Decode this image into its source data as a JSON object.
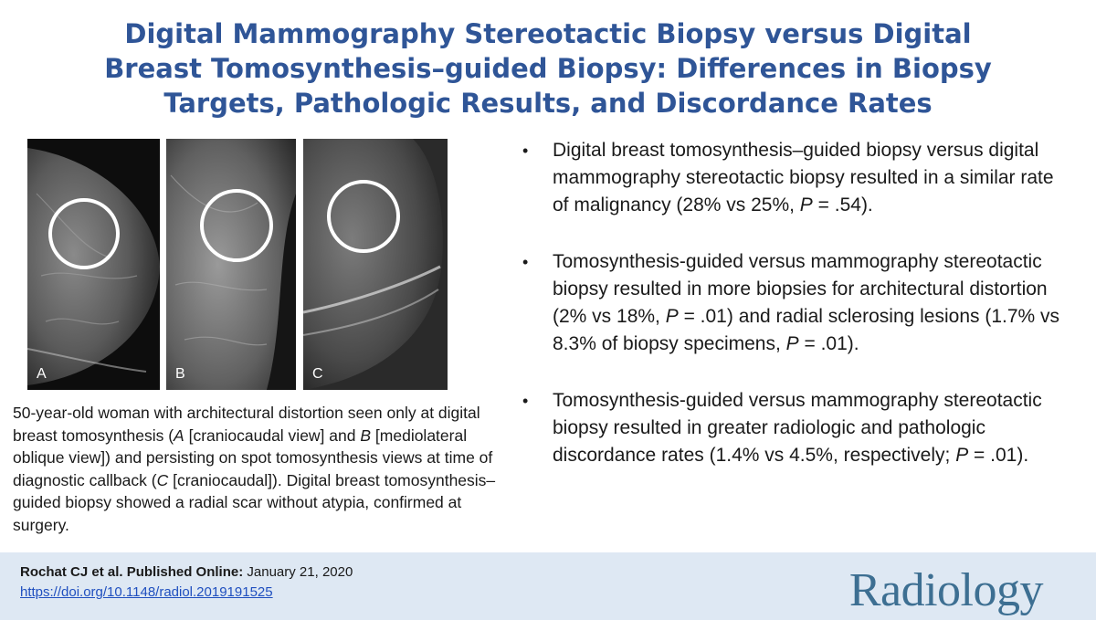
{
  "title": {
    "line1": "Digital Mammography Stereotactic Biopsy versus Digital",
    "line2": "Breast Tomosynthesis–guided Biopsy: Differences in Biopsy",
    "line3": "Targets, Pathologic Results, and Discordance Rates"
  },
  "figure": {
    "panels": [
      {
        "label": "A"
      },
      {
        "label": "B"
      },
      {
        "label": "C"
      }
    ],
    "caption": {
      "p1": "50-year-old woman with architectural distortion seen only at digital breast tomosynthesis (",
      "a": "A",
      "p2": " [craniocaudal view] and ",
      "b": "B",
      "p3": " [mediolateral oblique view]) and persisting on spot tomosynthesis views at time of diagnostic callback (",
      "c": "C",
      "p4": " [craniocaudal]). Digital breast tomosynthesis–guided biopsy showed a radial scar without atypia, confirmed at surgery."
    }
  },
  "bullets": [
    {
      "marker": "•",
      "pre": "Digital breast tomosynthesis–guided biopsy versus digital mammography stereotactic biopsy resulted in a similar rate of malignancy (28% vs 25%, ",
      "p": "P",
      "post": " = .54)."
    },
    {
      "marker": "•",
      "pre": "Tomosynthesis-guided versus mammography stereotactic biopsy resulted in more biopsies for architectural distortion (2% vs 18%, ",
      "p": "P",
      "mid": " = .01) and radial sclerosing lesions (1.7% vs 8.3% of biopsy specimens, ",
      "p2": "P",
      "post": " = .01)."
    },
    {
      "marker": "•",
      "pre": "Tomosynthesis-guided versus mammography stereotactic biopsy resulted in greater radiologic and pathologic discordance rates (1.4% vs 4.5%, respectively; ",
      "p": "P",
      "post": " = .01)."
    }
  ],
  "footer": {
    "author": "Rochat CJ et al. Published Online:",
    "date": " January 21, 2020",
    "doi": "https://doi.org/10.1148/radiol.2019191525",
    "brand": "Radiology"
  },
  "colors": {
    "title": "#2f5597",
    "footer_bg": "#dee8f3",
    "brand": "#3d6f92",
    "link": "#1f4fbf"
  }
}
